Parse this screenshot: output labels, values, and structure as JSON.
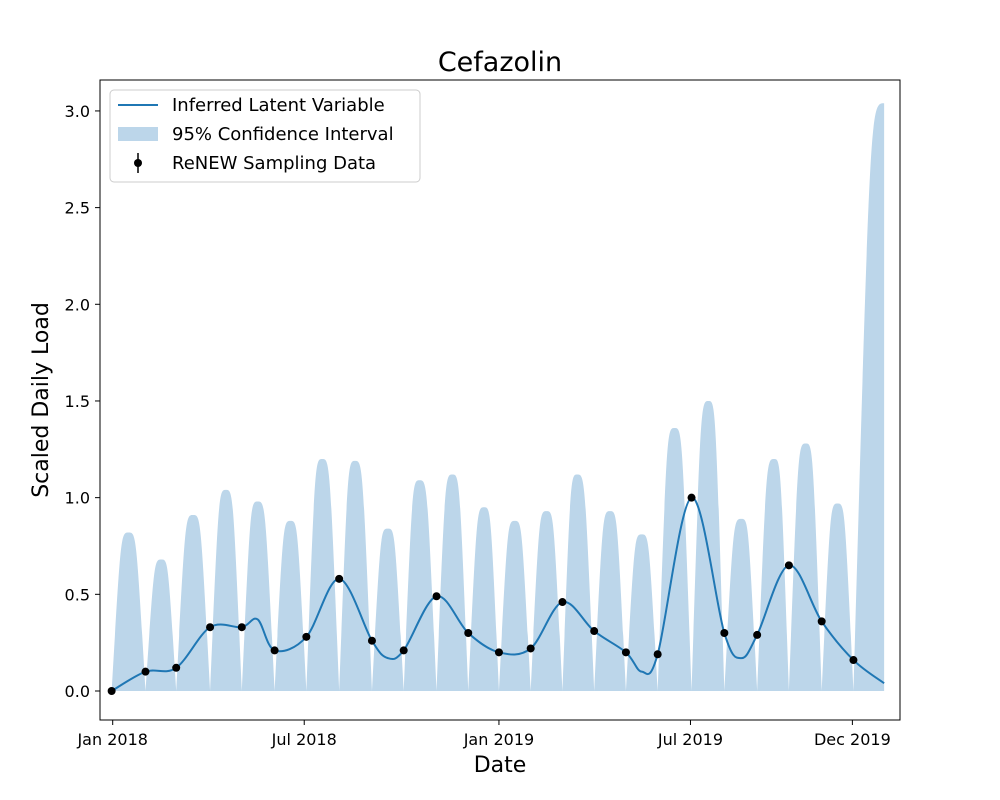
{
  "chart_data": {
    "type": "line",
    "title": "Cefazolin",
    "xlabel": "Date",
    "ylabel": "Scaled Daily Load",
    "xlim": [
      "2017-12-20",
      "2020-01-15"
    ],
    "ylim": [
      -0.15,
      3.16
    ],
    "x_ticks": [
      {
        "date": "2018-01-01",
        "label": "Jan 2018"
      },
      {
        "date": "2018-07-01",
        "label": "Jul 2018"
      },
      {
        "date": "2019-01-01",
        "label": "Jan 2019"
      },
      {
        "date": "2019-07-01",
        "label": "Jul 2019"
      },
      {
        "date": "2019-12-01",
        "label": "Dec 2019"
      }
    ],
    "y_ticks": [
      {
        "value": 0.0,
        "label": "0.0"
      },
      {
        "value": 0.5,
        "label": "0.5"
      },
      {
        "value": 1.0,
        "label": "1.0"
      },
      {
        "value": 1.5,
        "label": "1.5"
      },
      {
        "value": 2.0,
        "label": "2.0"
      },
      {
        "value": 2.5,
        "label": "2.5"
      },
      {
        "value": 3.0,
        "label": "3.0"
      }
    ],
    "grid": false,
    "legend_position": "top-left",
    "legend": [
      {
        "key": "latent",
        "label": "Inferred Latent Variable"
      },
      {
        "key": "ci",
        "label": "95% Confidence Interval"
      },
      {
        "key": "samples",
        "label": "ReNEW Sampling Data"
      }
    ],
    "colors": {
      "line": "#1f77b4",
      "band": "#bcd6ea",
      "points": "#000000"
    },
    "sampling_data": {
      "dates": [
        "2017-12-31",
        "2018-02-01",
        "2018-03-02",
        "2018-04-03",
        "2018-05-03",
        "2018-06-03",
        "2018-07-03",
        "2018-08-03",
        "2018-09-03",
        "2018-10-03",
        "2018-11-03",
        "2018-12-03",
        "2019-01-01",
        "2019-01-31",
        "2019-03-02",
        "2019-04-01",
        "2019-05-01",
        "2019-05-31",
        "2019-07-02",
        "2019-08-02",
        "2019-09-02",
        "2019-10-02",
        "2019-11-02",
        "2019-12-02"
      ],
      "values": [
        0.0,
        0.1,
        0.12,
        0.33,
        0.33,
        0.21,
        0.28,
        0.58,
        0.26,
        0.21,
        0.49,
        0.3,
        0.2,
        0.22,
        0.46,
        0.31,
        0.2,
        0.19,
        1.0,
        0.3,
        0.29,
        0.65,
        0.36,
        0.16
      ]
    },
    "latent_extra": {
      "dates": [
        "2018-05-18",
        "2018-09-18",
        "2019-05-16",
        "2019-08-18",
        "2019-12-31"
      ],
      "values": [
        0.37,
        0.17,
        0.1,
        0.17,
        0.04
      ]
    },
    "ci_peaks": {
      "dates": [
        "2018-01-16",
        "2018-02-16",
        "2018-03-18",
        "2018-04-18",
        "2018-05-18",
        "2018-06-18",
        "2018-07-18",
        "2018-08-18",
        "2018-09-18",
        "2018-10-18",
        "2018-11-18",
        "2018-12-18",
        "2019-01-16",
        "2019-02-15",
        "2019-03-16",
        "2019-04-16",
        "2019-05-16",
        "2019-06-16",
        "2019-07-18",
        "2019-08-18",
        "2019-09-18",
        "2019-10-18",
        "2019-11-17",
        "2019-12-31"
      ],
      "upper": [
        0.82,
        0.68,
        0.91,
        1.04,
        0.98,
        0.88,
        1.2,
        1.19,
        0.84,
        1.09,
        1.12,
        0.95,
        0.88,
        0.93,
        1.12,
        0.93,
        0.81,
        1.36,
        1.5,
        0.89,
        1.2,
        1.28,
        0.97,
        3.04
      ]
    }
  }
}
